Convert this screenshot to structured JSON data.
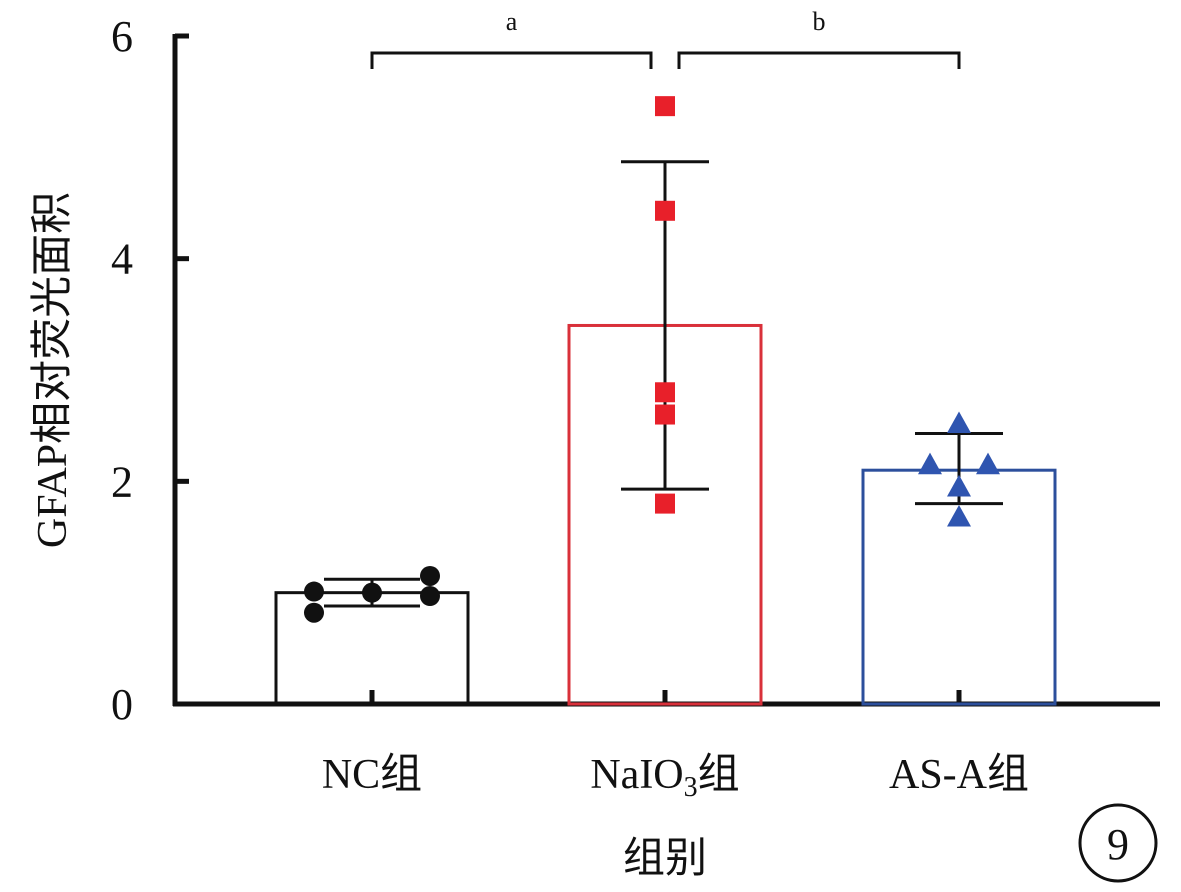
{
  "chart_data": {
    "type": "bar",
    "xlabel": "组别",
    "ylabel": "GFAP相对荧光面积",
    "ylim": [
      0,
      6
    ],
    "yticks": [
      "0",
      "2",
      "4",
      "6"
    ],
    "categories": [
      {
        "name": "NC组",
        "main": "NC",
        "sub": "",
        "suffix": "组"
      },
      {
        "name": "NaIO3组",
        "main": "NaIO",
        "sub": "3",
        "suffix": "组"
      },
      {
        "name": "AS-A组",
        "main": "AS-A",
        "sub": "",
        "suffix": "组"
      }
    ],
    "means": [
      1.0,
      3.4,
      2.1
    ],
    "error_low": [
      0.88,
      1.93,
      1.8
    ],
    "error_high": [
      1.12,
      4.87,
      2.43
    ],
    "points": [
      [
        1.01,
        1.0,
        1.15,
        0.97,
        0.82
      ],
      [
        5.37,
        4.43,
        2.8,
        2.6,
        1.8
      ],
      [
        2.52,
        2.15,
        2.15,
        1.95,
        1.68
      ]
    ],
    "comparisons": [
      {
        "from": 0,
        "to": 1,
        "label": "a"
      },
      {
        "from": 1,
        "to": 2,
        "label": "b"
      }
    ],
    "panel_label": "9",
    "colors": {
      "nc": "#111111",
      "naio3_bar": "#d9303a",
      "naio3_points": "#e8202a",
      "asa_bar": "#2c4f9c",
      "asa_points": "#2f55b0",
      "axis": "#111111"
    }
  }
}
